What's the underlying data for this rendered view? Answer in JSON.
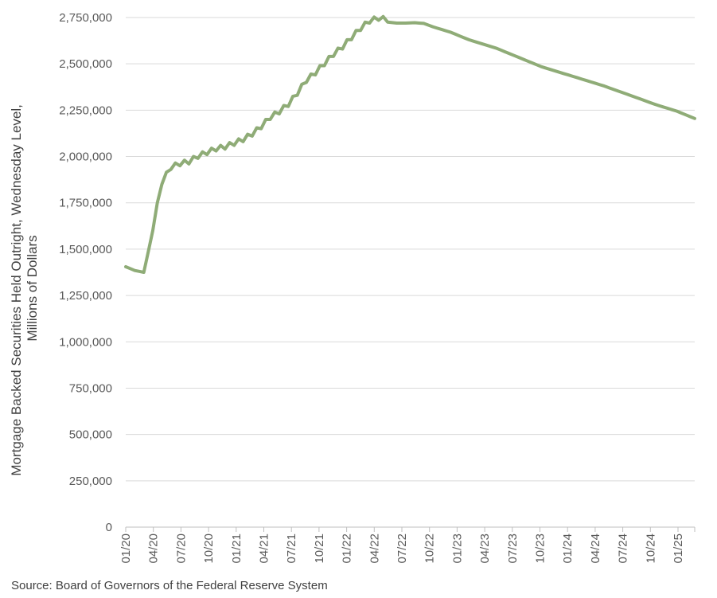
{
  "chart_data": {
    "type": "line",
    "title": "",
    "xlabel": "",
    "ylabel_lines": [
      "Mortgage Backed Securities Held Outright, Wednesday Level,",
      "Millions of Dollars"
    ],
    "ylim": [
      0,
      2750000
    ],
    "y_ticks": [
      0,
      250000,
      500000,
      750000,
      1000000,
      1250000,
      1500000,
      1750000,
      2000000,
      2250000,
      2500000,
      2750000
    ],
    "y_tick_labels": [
      "0",
      "250,000",
      "500,000",
      "750,000",
      "1,000,000",
      "1,250,000",
      "1,500,000",
      "1,750,000",
      "2,000,000",
      "2,250,000",
      "2,500,000",
      "2,750,000"
    ],
    "x_tick_labels": [
      "01/20",
      "04/20",
      "07/20",
      "10/20",
      "01/21",
      "04/21",
      "07/21",
      "10/21",
      "01/22",
      "04/22",
      "07/22",
      "10/22",
      "01/23",
      "04/23",
      "07/23",
      "10/23",
      "01/24",
      "04/24",
      "07/24",
      "10/24",
      "01/25"
    ],
    "grid": true,
    "legend": "none",
    "series": [
      {
        "color": "#8fac77",
        "x": [
          "2020-01",
          "2020-02",
          "2020-03",
          "2020-04a",
          "2020-04b",
          "2020-05",
          "2020-06",
          "2020-07",
          "2020-08",
          "2020-09",
          "2020-10",
          "2020-11",
          "2020-12",
          "2021-01",
          "2021-02",
          "2021-03",
          "2021-04",
          "2021-05",
          "2021-06",
          "2021-07",
          "2021-08",
          "2021-09",
          "2021-10",
          "2021-11",
          "2021-12",
          "2022-01",
          "2022-02",
          "2022-03",
          "2022-04",
          "2022-05",
          "2022-06",
          "2022-07",
          "2022-08",
          "2022-09",
          "2022-10",
          "2022-11",
          "2022-12",
          "2023-01",
          "2023-02",
          "2023-03",
          "2023-04",
          "2023-05",
          "2023-06",
          "2023-07",
          "2023-08",
          "2023-09",
          "2023-10",
          "2023-11",
          "2023-12",
          "2024-01",
          "2024-02",
          "2024-03",
          "2024-04",
          "2024-05",
          "2024-06",
          "2024-07",
          "2024-08",
          "2024-09",
          "2024-10",
          "2024-11",
          "2024-12",
          "2025-01",
          "2025-02",
          "2025-03"
        ],
        "values": [
          1405000,
          1385000,
          1375000,
          1600000,
          1850000,
          1930000,
          1950000,
          1960000,
          1990000,
          2010000,
          2030000,
          2040000,
          2060000,
          2080000,
          2110000,
          2150000,
          2200000,
          2230000,
          2270000,
          2330000,
          2400000,
          2440000,
          2490000,
          2540000,
          2580000,
          2630000,
          2680000,
          2720000,
          2735000,
          2725000,
          2720000,
          2720000,
          2722000,
          2718000,
          2700000,
          2685000,
          2670000,
          2650000,
          2630000,
          2615000,
          2600000,
          2585000,
          2565000,
          2545000,
          2525000,
          2505000,
          2485000,
          2470000,
          2455000,
          2440000,
          2425000,
          2410000,
          2395000,
          2380000,
          2362000,
          2345000,
          2327000,
          2310000,
          2292000,
          2275000,
          2260000,
          2245000,
          2225000,
          2205000
        ]
      }
    ]
  },
  "source": "Source: Board of Governors of the Federal Reserve System"
}
